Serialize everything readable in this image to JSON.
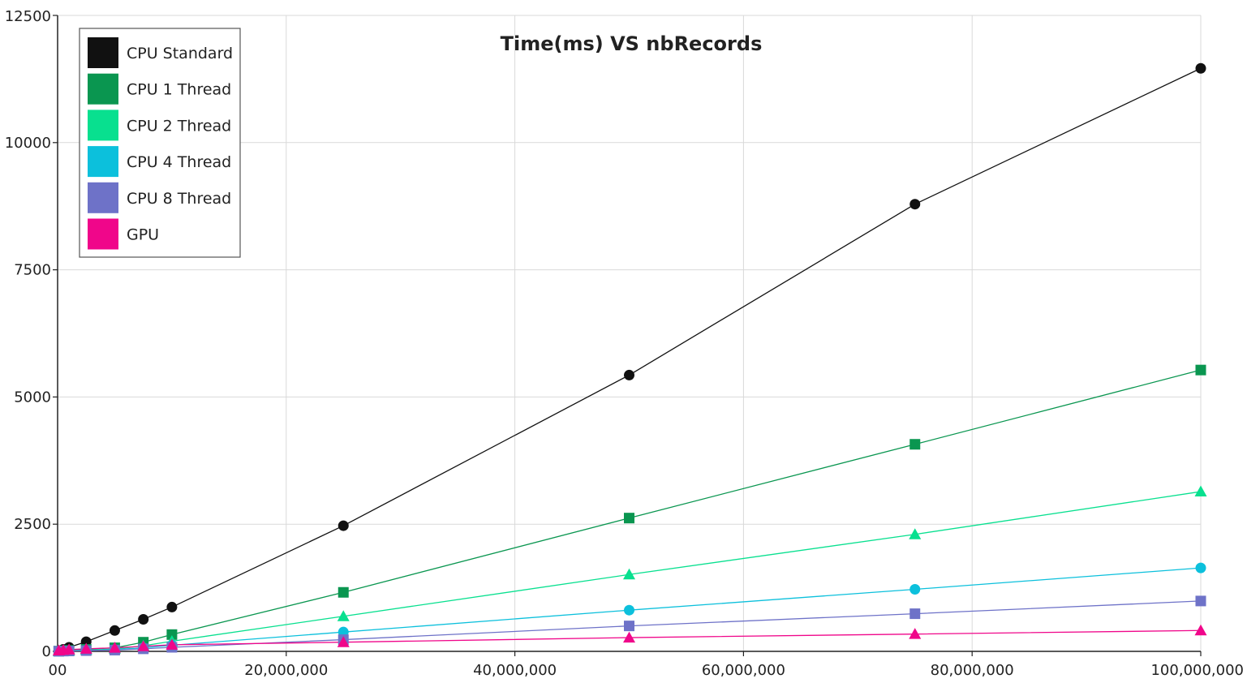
{
  "chart_data": {
    "type": "line",
    "title": "Time(ms) VS nbRecords",
    "xlabel": "",
    "ylabel": "",
    "xlim": [
      0,
      100000000
    ],
    "ylim": [
      0,
      12500
    ],
    "x_ticks": [
      0,
      20000000,
      40000000,
      60000000,
      80000000,
      100000000
    ],
    "x_tick_labels": [
      "00",
      "20,000,000",
      "40,000,000",
      "60,000,000",
      "80,000,000",
      "100,000,000"
    ],
    "y_ticks": [
      0,
      2500,
      5000,
      7500,
      10000,
      12500
    ],
    "y_tick_labels": [
      "0",
      "2500",
      "5000",
      "7500",
      "10000",
      "12500"
    ],
    "grid": true,
    "legend_position": "top-left",
    "x": [
      100000,
      500000,
      1000000,
      2500000,
      5000000,
      7500000,
      10000000,
      25000000,
      50000000,
      75000000,
      100000000
    ],
    "series": [
      {
        "name": "CPU Standard",
        "color": "#111111",
        "marker": "circle",
        "values": [
          10,
          40,
          80,
          190,
          410,
          630,
          870,
          2470,
          5430,
          8790,
          11460
        ]
      },
      {
        "name": "CPU 1 Thread",
        "color": "#0a9650",
        "marker": "square",
        "values": [
          5,
          12,
          20,
          40,
          70,
          180,
          330,
          1160,
          2620,
          4070,
          5530
        ]
      },
      {
        "name": "CPU 2 Thread",
        "color": "#08e08f",
        "marker": "triangle",
        "values": [
          4,
          8,
          12,
          25,
          45,
          110,
          200,
          690,
          1510,
          2300,
          3140
        ]
      },
      {
        "name": "CPU 4 Thread",
        "color": "#0cc0dc",
        "marker": "circle",
        "values": [
          3,
          6,
          10,
          20,
          35,
          70,
          120,
          380,
          810,
          1220,
          1640
        ]
      },
      {
        "name": "CPU 8 Thread",
        "color": "#6e72c8",
        "marker": "square",
        "values": [
          2,
          5,
          8,
          15,
          25,
          50,
          80,
          230,
          500,
          740,
          990
        ]
      },
      {
        "name": "GPU",
        "color": "#f0068a",
        "marker": "triangle",
        "values": [
          15,
          25,
          35,
          50,
          70,
          100,
          130,
          180,
          270,
          340,
          410
        ]
      }
    ]
  }
}
